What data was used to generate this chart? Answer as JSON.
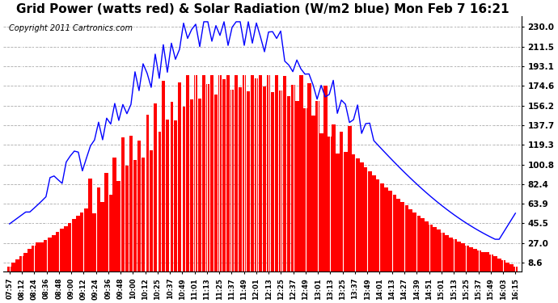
{
  "title": "Grid Power (watts red) & Solar Radiation (W/m2 blue) Mon Feb 7 16:21",
  "copyright": "Copyright 2011 Cartronics.com",
  "title_fontsize": 11,
  "background_color": "#ffffff",
  "plot_bg_color": "#ffffff",
  "grid_color": "#aaaaaa",
  "ytick_labels": [
    "8.6",
    "27.0",
    "45.5",
    "63.9",
    "82.4",
    "100.8",
    "119.3",
    "137.7",
    "156.2",
    "174.6",
    "193.1",
    "211.5",
    "230.0"
  ],
  "ytick_values": [
    8.6,
    27.0,
    45.5,
    63.9,
    82.4,
    100.8,
    119.3,
    137.7,
    156.2,
    174.6,
    193.1,
    211.5,
    230.0
  ],
  "ylim": [
    0,
    240
  ],
  "red_color": "#ff0000",
  "blue_color": "#0000ff",
  "xtick_labels": [
    "07:57",
    "08:12",
    "08:24",
    "08:36",
    "08:48",
    "09:00",
    "09:12",
    "09:24",
    "09:36",
    "09:48",
    "10:00",
    "10:12",
    "10:25",
    "10:37",
    "10:49",
    "11:01",
    "11:13",
    "11:25",
    "11:37",
    "11:49",
    "12:01",
    "12:13",
    "12:25",
    "12:37",
    "12:49",
    "13:01",
    "13:13",
    "13:25",
    "13:37",
    "13:49",
    "14:01",
    "14:13",
    "14:27",
    "14:39",
    "14:51",
    "15:01",
    "15:13",
    "15:25",
    "15:37",
    "15:49",
    "16:03",
    "16:15"
  ],
  "n_xticks": 42
}
